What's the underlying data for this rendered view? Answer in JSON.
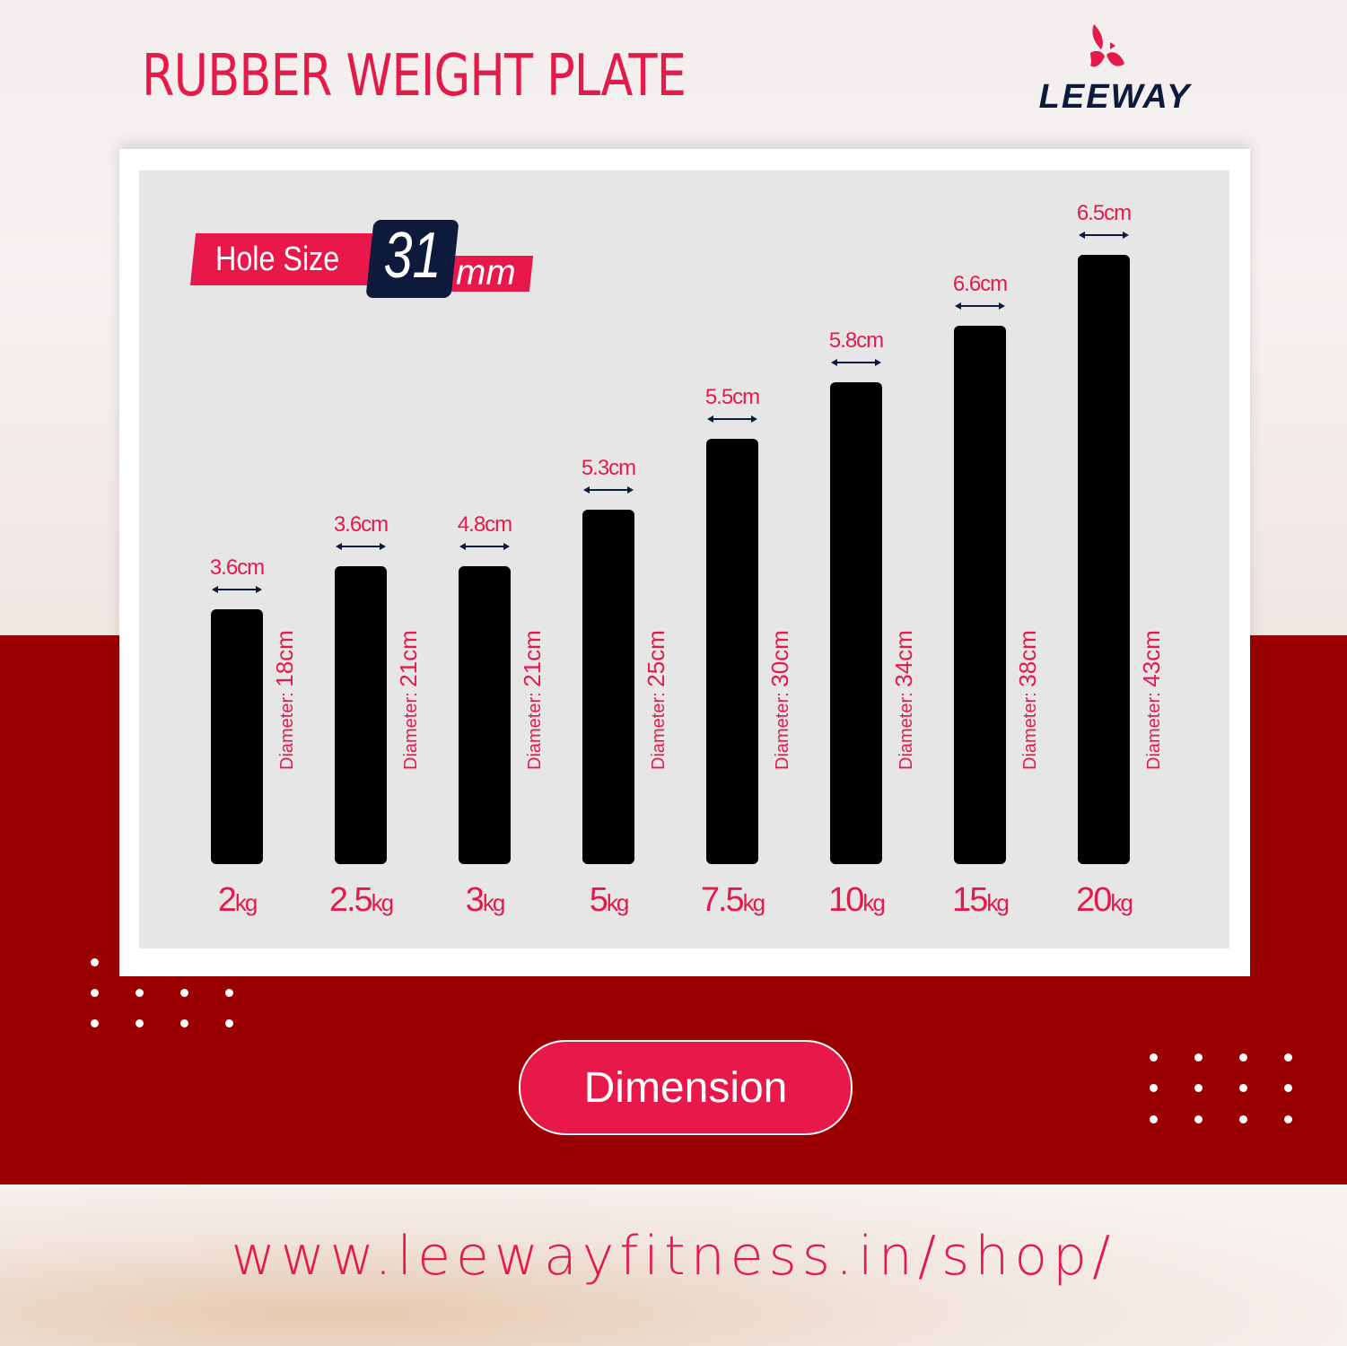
{
  "title": "RUBBER WEIGHT PLATE",
  "brand": {
    "name": "LEEWAY",
    "logo_icon": "leeway-bird-logo"
  },
  "hole_size": {
    "label": "Hole Size",
    "value": "31",
    "unit": "mm"
  },
  "plates": [
    {
      "weight": "2",
      "unit": "kg",
      "thickness": "3.6cm",
      "diameter_label": "Diameter: ",
      "diameter": "18cm",
      "diameter_cm": 18
    },
    {
      "weight": "2.5",
      "unit": "kg",
      "thickness": "3.6cm",
      "diameter_label": "Diameter: ",
      "diameter": "21cm",
      "diameter_cm": 21
    },
    {
      "weight": "3",
      "unit": "kg",
      "thickness": "4.8cm",
      "diameter_label": "Diameter: ",
      "diameter": "21cm",
      "diameter_cm": 21
    },
    {
      "weight": "5",
      "unit": "kg",
      "thickness": "5.3cm",
      "diameter_label": "Diameter: ",
      "diameter": "25cm",
      "diameter_cm": 25
    },
    {
      "weight": "7.5",
      "unit": "kg",
      "thickness": "5.5cm",
      "diameter_label": "Diameter: ",
      "diameter": "30cm",
      "diameter_cm": 30
    },
    {
      "weight": "10",
      "unit": "kg",
      "thickness": "5.8cm",
      "diameter_label": "Diameter: ",
      "diameter": "34cm",
      "diameter_cm": 34
    },
    {
      "weight": "15",
      "unit": "kg",
      "thickness": "6.6cm",
      "diameter_label": "Diameter: ",
      "diameter": "38cm",
      "diameter_cm": 38
    },
    {
      "weight": "20",
      "unit": "kg",
      "thickness": "6.5cm",
      "diameter_label": "Diameter: ",
      "diameter": "43cm",
      "diameter_cm": 43
    }
  ],
  "dimension_button": "Dimension",
  "url": "www.leewayfitness.in/shop/",
  "colors": {
    "accent": "#e8194a",
    "band": "#9b0000",
    "navy": "#0d1a3c",
    "plate": "#000000"
  }
}
